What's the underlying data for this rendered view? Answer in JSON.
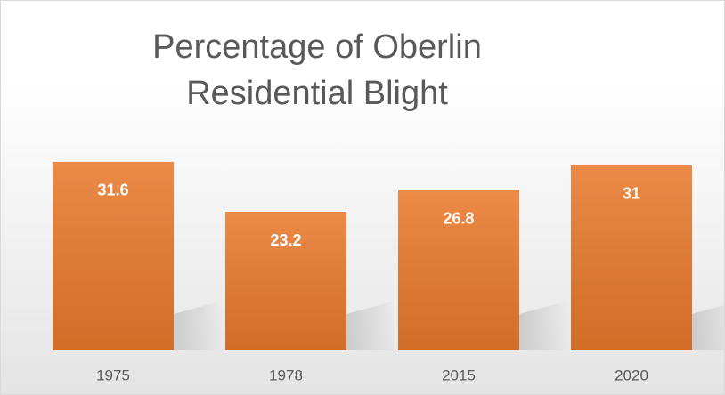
{
  "chart_data": {
    "type": "bar",
    "title": "Percentage of Oberlin Residential Blight",
    "categories": [
      "1975",
      "1978",
      "2015",
      "2020"
    ],
    "values": [
      31.6,
      23.2,
      26.8,
      31
    ],
    "color": "#ea7a2e"
  }
}
